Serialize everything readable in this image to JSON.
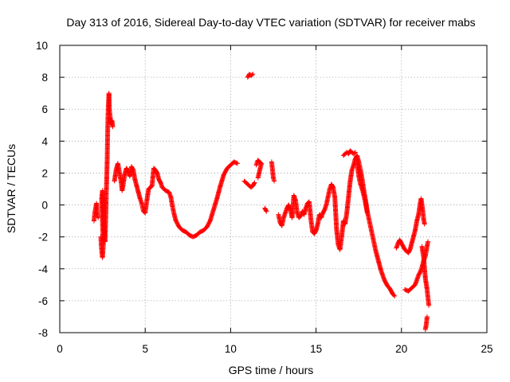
{
  "chart_data": {
    "type": "scatter",
    "title": "Day 313 of 2016, Sidereal Day-to-day VTEC variation (SDTVAR) for receiver mabs",
    "xlabel": "GPS time / hours",
    "ylabel": "SDTVAR / TECUs",
    "xlim": [
      0,
      25
    ],
    "ylim": [
      -8,
      10
    ],
    "xticks": [
      "0",
      "5",
      "10",
      "15",
      "20",
      "25"
    ],
    "yticks": [
      "-8",
      "-6",
      "-4",
      "-2",
      "0",
      "2",
      "4",
      "6",
      "8",
      "10"
    ],
    "grid": true,
    "marker": "+",
    "color": "#ff0000",
    "series": [
      {
        "name": "mabs SDTVAR",
        "segments": [
          [
            [
              2.0,
              -1.0
            ],
            [
              2.05,
              -0.5
            ],
            [
              2.1,
              -0.2
            ],
            [
              2.15,
              0.1
            ],
            [
              2.2,
              -0.6
            ],
            [
              2.25,
              -0.8
            ]
          ],
          [
            [
              2.4,
              -2.0
            ],
            [
              2.45,
              -2.8
            ],
            [
              2.5,
              -3.3
            ],
            [
              2.55,
              -2.5
            ],
            [
              2.5,
              -1.0
            ],
            [
              2.45,
              0.4
            ],
            [
              2.5,
              0.9
            ],
            [
              2.6,
              -1.5
            ],
            [
              2.65,
              -2.3
            ],
            [
              2.7,
              -0.5
            ],
            [
              2.72,
              0.7
            ],
            [
              2.75,
              1.7
            ],
            [
              2.78,
              3.0
            ],
            [
              2.8,
              4.4
            ],
            [
              2.82,
              5.5
            ],
            [
              2.85,
              6.3
            ],
            [
              2.88,
              7.0
            ],
            [
              2.9,
              6.0
            ],
            [
              2.95,
              5.5
            ],
            [
              3.0,
              5.1
            ],
            [
              3.05,
              5.3
            ],
            [
              3.1,
              4.9
            ]
          ],
          [
            [
              3.2,
              1.5
            ],
            [
              3.3,
              2.2
            ],
            [
              3.4,
              2.6
            ],
            [
              3.5,
              2.0
            ],
            [
              3.6,
              1.4
            ],
            [
              3.65,
              0.9
            ],
            [
              3.7,
              1.2
            ],
            [
              3.8,
              1.9
            ],
            [
              3.9,
              2.3
            ],
            [
              4.0,
              2.1
            ],
            [
              4.1,
              1.8
            ],
            [
              4.2,
              2.4
            ],
            [
              4.3,
              2.2
            ],
            [
              4.4,
              1.6
            ],
            [
              4.5,
              1.2
            ],
            [
              4.6,
              0.8
            ],
            [
              4.7,
              0.4
            ],
            [
              4.8,
              0.1
            ],
            [
              4.9,
              -0.4
            ],
            [
              5.0,
              -0.5
            ],
            [
              5.1,
              0.3
            ],
            [
              5.2,
              1.0
            ],
            [
              5.4,
              1.2
            ],
            [
              5.5,
              2.3
            ],
            [
              5.6,
              2.2
            ],
            [
              5.7,
              2.0
            ],
            [
              5.8,
              1.6
            ],
            [
              5.9,
              1.4
            ],
            [
              6.0,
              1.1
            ],
            [
              6.2,
              0.9
            ],
            [
              6.4,
              0.8
            ],
            [
              6.5,
              0.5
            ],
            [
              6.6,
              -0.1
            ],
            [
              6.7,
              -0.6
            ],
            [
              6.8,
              -1.0
            ],
            [
              7.0,
              -1.4
            ],
            [
              7.2,
              -1.6
            ],
            [
              7.4,
              -1.7
            ],
            [
              7.6,
              -1.9
            ],
            [
              7.8,
              -2.0
            ],
            [
              8.0,
              -1.9
            ],
            [
              8.2,
              -1.7
            ],
            [
              8.4,
              -1.6
            ],
            [
              8.6,
              -1.4
            ],
            [
              8.8,
              -1.0
            ],
            [
              9.0,
              -0.3
            ],
            [
              9.2,
              0.4
            ],
            [
              9.4,
              1.2
            ],
            [
              9.6,
              1.9
            ],
            [
              9.8,
              2.3
            ],
            [
              10.0,
              2.5
            ],
            [
              10.2,
              2.7
            ],
            [
              10.4,
              2.6
            ]
          ],
          [
            [
              10.8,
              1.5
            ],
            [
              10.9,
              1.4
            ],
            [
              11.0,
              1.3
            ],
            [
              11.1,
              1.2
            ],
            [
              11.2,
              1.1
            ],
            [
              11.3,
              1.2
            ],
            [
              11.4,
              1.4
            ]
          ],
          [
            [
              11.0,
              8.0
            ],
            [
              11.1,
              8.2
            ],
            [
              11.2,
              8.1
            ],
            [
              11.3,
              8.2
            ]
          ],
          [
            [
              11.5,
              2.5
            ],
            [
              11.6,
              2.8
            ],
            [
              11.8,
              2.6
            ],
            [
              11.6,
              1.7
            ]
          ],
          [
            [
              12.0,
              -0.2
            ],
            [
              12.1,
              -0.4
            ]
          ],
          [
            [
              12.4,
              2.7
            ],
            [
              12.45,
              2.2
            ],
            [
              12.5,
              1.7
            ],
            [
              12.55,
              1.5
            ]
          ],
          [
            [
              12.8,
              -0.6
            ],
            [
              12.9,
              -1.1
            ],
            [
              13.0,
              -1.3
            ],
            [
              13.1,
              -0.8
            ],
            [
              13.2,
              -0.5
            ],
            [
              13.3,
              -0.2
            ],
            [
              13.4,
              0.0
            ],
            [
              13.5,
              -0.3
            ],
            [
              13.6,
              -0.8
            ],
            [
              13.7,
              0.6
            ],
            [
              13.8,
              0.3
            ],
            [
              13.9,
              -0.5
            ],
            [
              14.0,
              -0.8
            ],
            [
              14.1,
              -0.7
            ],
            [
              14.2,
              -0.4
            ],
            [
              14.3,
              -0.6
            ],
            [
              14.4,
              -0.2
            ],
            [
              14.5,
              0.1
            ],
            [
              14.6,
              0.2
            ],
            [
              14.7,
              -0.9
            ],
            [
              14.8,
              -1.7
            ],
            [
              14.9,
              -1.8
            ],
            [
              15.0,
              -1.6
            ],
            [
              15.1,
              -1.2
            ],
            [
              15.2,
              -0.6
            ],
            [
              15.3,
              -0.8
            ],
            [
              15.4,
              -0.5
            ],
            [
              15.5,
              -0.3
            ],
            [
              15.6,
              0.0
            ],
            [
              15.7,
              0.5
            ],
            [
              15.8,
              1.0
            ],
            [
              15.9,
              1.3
            ],
            [
              16.0,
              1.1
            ],
            [
              16.1,
              0.5
            ],
            [
              16.2,
              -1.5
            ],
            [
              16.3,
              -2.5
            ],
            [
              16.4,
              -2.8
            ],
            [
              16.5,
              -2.0
            ],
            [
              16.6,
              -1.0
            ],
            [
              16.7,
              -1.2
            ],
            [
              16.8,
              -0.5
            ],
            [
              16.9,
              0.5
            ],
            [
              17.0,
              1.5
            ],
            [
              17.1,
              2.2
            ],
            [
              17.2,
              2.5
            ],
            [
              17.3,
              2.9
            ],
            [
              17.4,
              3.1
            ],
            [
              17.5,
              2.7
            ],
            [
              17.6,
              2.2
            ],
            [
              17.7,
              1.6
            ],
            [
              17.8,
              0.9
            ],
            [
              17.9,
              0.3
            ],
            [
              18.0,
              -0.4
            ],
            [
              18.1,
              -0.9
            ],
            [
              18.2,
              -1.4
            ],
            [
              18.3,
              -1.9
            ],
            [
              18.4,
              -2.4
            ],
            [
              18.5,
              -2.9
            ],
            [
              18.6,
              -3.3
            ],
            [
              18.7,
              -3.7
            ],
            [
              18.8,
              -4.1
            ],
            [
              18.9,
              -4.4
            ],
            [
              19.0,
              -4.7
            ],
            [
              19.1,
              -4.9
            ],
            [
              19.2,
              -5.1
            ],
            [
              19.3,
              -5.2
            ],
            [
              19.4,
              -5.4
            ],
            [
              19.5,
              -5.6
            ],
            [
              19.6,
              -5.7
            ]
          ],
          [
            [
              16.6,
              3.1
            ],
            [
              16.7,
              3.2
            ],
            [
              16.8,
              3.3
            ],
            [
              16.9,
              3.2
            ],
            [
              17.0,
              3.4
            ],
            [
              17.1,
              3.3
            ],
            [
              17.2,
              3.2
            ],
            [
              17.3,
              3.3
            ]
          ],
          [
            [
              17.4,
              2.6
            ],
            [
              17.5,
              1.8
            ],
            [
              17.6,
              1.3
            ],
            [
              17.7,
              1.0
            ],
            [
              17.8,
              0.6
            ],
            [
              17.9,
              0.1
            ],
            [
              18.0,
              -0.5
            ]
          ],
          [
            [
              19.7,
              -2.7
            ],
            [
              19.8,
              -2.4
            ],
            [
              19.9,
              -2.2
            ],
            [
              20.0,
              -2.4
            ],
            [
              20.1,
              -2.6
            ],
            [
              20.2,
              -2.8
            ],
            [
              20.3,
              -2.9
            ],
            [
              20.4,
              -3.0
            ],
            [
              20.5,
              -2.8
            ],
            [
              20.6,
              -2.4
            ],
            [
              20.7,
              -2.0
            ],
            [
              20.8,
              -1.6
            ],
            [
              20.9,
              -1.0
            ],
            [
              21.0,
              -0.6
            ],
            [
              21.1,
              0.1
            ],
            [
              21.15,
              0.4
            ],
            [
              21.2,
              0.0
            ],
            [
              21.25,
              -0.4
            ],
            [
              21.3,
              -0.9
            ],
            [
              21.35,
              -1.2
            ]
          ],
          [
            [
              20.2,
              -5.3
            ],
            [
              20.4,
              -5.4
            ],
            [
              20.6,
              -5.2
            ],
            [
              20.8,
              -5.0
            ],
            [
              20.9,
              -4.7
            ],
            [
              21.0,
              -4.4
            ],
            [
              21.1,
              -4.2
            ],
            [
              21.2,
              -3.9
            ],
            [
              21.3,
              -3.5
            ],
            [
              21.4,
              -3.2
            ],
            [
              21.5,
              -2.6
            ],
            [
              21.55,
              -2.3
            ]
          ],
          [
            [
              21.2,
              -2.6
            ],
            [
              21.3,
              -3.3
            ],
            [
              21.4,
              -4.6
            ],
            [
              21.5,
              -5.3
            ],
            [
              21.55,
              -5.8
            ],
            [
              21.6,
              -6.3
            ]
          ],
          [
            [
              21.4,
              -7.8
            ],
            [
              21.45,
              -7.5
            ],
            [
              21.5,
              -7.0
            ]
          ]
        ]
      }
    ]
  }
}
